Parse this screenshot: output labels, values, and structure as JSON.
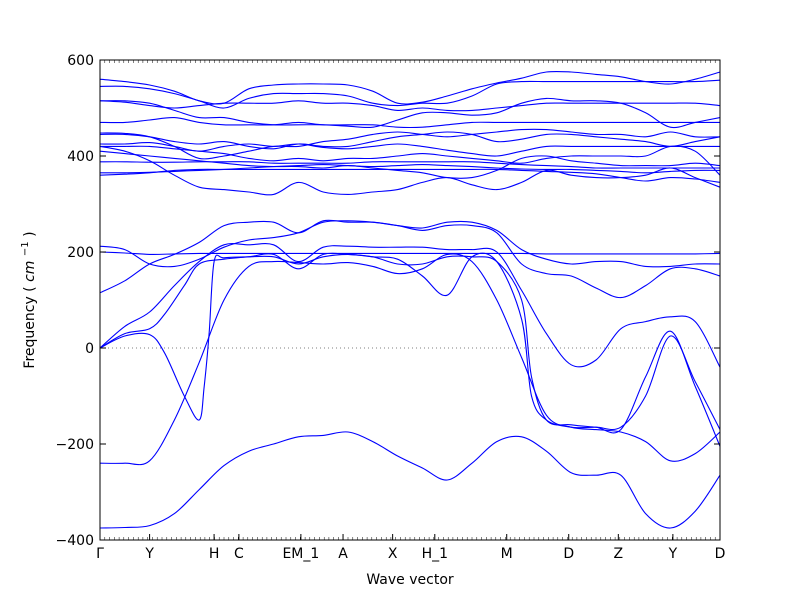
{
  "chart_data": {
    "type": "line",
    "title": "",
    "xlabel": "Wave vector",
    "ylabel": "Frequency",
    "ylabel_unit_parts": [
      "cm",
      "−1"
    ],
    "ylim": [
      -400,
      600
    ],
    "yticks": [
      -400,
      -200,
      0,
      200,
      400,
      600
    ],
    "xlim": [
      0,
      12.5
    ],
    "x_ticks": [
      {
        "label": "Γ",
        "x": 0
      },
      {
        "label": "Y",
        "x": 1
      },
      {
        "label": "H",
        "x": 2.3
      },
      {
        "label": "C",
        "x": 2.8
      },
      {
        "label": "EM_1",
        "x": 4.05
      },
      {
        "label": "A",
        "x": 4.9
      },
      {
        "label": "X",
        "x": 5.9
      },
      {
        "label": "H_1",
        "x": 6.75
      },
      {
        "label": "M",
        "x": 8.2
      },
      {
        "label": "D",
        "x": 9.45
      },
      {
        "label": "Z",
        "x": 10.45
      },
      {
        "label": "Y",
        "x": 11.55
      },
      {
        "label": "D",
        "x": 12.5
      }
    ],
    "zero_line": true,
    "grid": false,
    "line_color": "#0000ff",
    "series": [
      {
        "x": [
          0,
          0.5,
          1,
          1.5,
          2,
          2.5,
          3,
          3.5,
          4,
          4.5,
          5,
          5.5,
          6,
          6.5,
          7,
          7.5,
          8,
          8.5,
          9,
          9.5,
          10,
          10.5,
          11,
          11.5,
          12,
          12.5
        ],
        "values": [
          -375,
          -374,
          -370,
          -345,
          -295,
          -245,
          -215,
          -200,
          -185,
          -182,
          -175,
          -195,
          -225,
          -250,
          -275,
          -240,
          -195,
          -185,
          -215,
          -260,
          -265,
          -265,
          -345,
          -375,
          -340,
          -265
        ]
      },
      {
        "x": [
          0,
          0.5,
          1,
          1.5,
          2,
          2.5,
          3,
          3.5,
          4,
          4.5,
          5,
          5.5,
          6,
          6.5,
          7,
          7.5,
          8,
          8.5,
          9,
          9.5,
          10,
          10.5,
          11,
          11.5,
          12,
          12.5
        ],
        "values": [
          -240,
          -240,
          -235,
          -150,
          -30,
          100,
          170,
          180,
          178,
          175,
          178,
          170,
          155,
          165,
          195,
          180,
          100,
          -20,
          -140,
          -165,
          -170,
          -175,
          -195,
          -235,
          -220,
          -175
        ]
      },
      {
        "x": [
          0,
          0.5,
          1,
          1.3,
          1.7,
          2,
          2.1,
          2.2,
          2.3,
          2.5,
          3,
          3.5,
          4,
          4.5,
          5,
          5.5,
          6,
          6.5,
          7,
          7.5,
          8,
          8.5,
          8.7,
          9,
          9.5,
          10,
          10.5,
          11,
          11.5,
          12,
          12.5
        ],
        "values": [
          0,
          25,
          28,
          -10,
          -100,
          -150,
          -80,
          30,
          180,
          188,
          190,
          190,
          175,
          190,
          195,
          190,
          185,
          150,
          110,
          190,
          180,
          60,
          -100,
          -150,
          -165,
          -165,
          -165,
          -100,
          25,
          -70,
          -170
        ]
      },
      {
        "x": [
          0,
          0.5,
          1,
          1.3,
          1.7,
          2,
          2.5,
          3,
          3.5,
          4,
          4.5,
          5,
          5.5,
          6,
          6.5,
          7,
          7.5,
          8,
          8.5,
          8.7,
          9,
          9.5,
          10,
          10.5,
          11,
          11.5,
          12,
          12.5
        ],
        "values": [
          0,
          30,
          40,
          70,
          130,
          175,
          185,
          190,
          195,
          165,
          195,
          195,
          190,
          175,
          175,
          190,
          190,
          180,
          100,
          -60,
          -150,
          -160,
          -165,
          -170,
          -60,
          35,
          -80,
          -205
        ]
      },
      {
        "x": [
          0,
          0.5,
          1,
          1.5,
          2,
          2.5,
          3,
          3.5,
          4,
          4.5,
          5,
          5.5,
          6,
          6.5,
          7,
          7.5,
          8,
          8.5,
          9,
          9.5,
          10,
          10.5,
          11,
          11.5,
          12,
          12.5
        ],
        "values": [
          0,
          45,
          75,
          130,
          180,
          215,
          215,
          215,
          180,
          210,
          212,
          210,
          210,
          210,
          205,
          205,
          200,
          120,
          30,
          -35,
          -25,
          40,
          55,
          65,
          55,
          -40
        ]
      },
      {
        "x": [
          0,
          0.5,
          1,
          1.5,
          2,
          2.5,
          3,
          3.5,
          4,
          4.5,
          5,
          5.5,
          6,
          6.5,
          7,
          7.5,
          8,
          8.5,
          9,
          9.5,
          10,
          10.5,
          11,
          11.5,
          12,
          12.5
        ],
        "values": [
          115,
          140,
          175,
          195,
          220,
          255,
          262,
          262,
          240,
          265,
          262,
          262,
          255,
          245,
          255,
          255,
          240,
          175,
          155,
          150,
          125,
          105,
          130,
          165,
          165,
          150
        ]
      },
      {
        "x": [
          0,
          0.5,
          1,
          1.5,
          2,
          2.5,
          3,
          3.5,
          4,
          4.5,
          5,
          5.5,
          6,
          6.5,
          7,
          7.5,
          8,
          8.5,
          9,
          9.5,
          10,
          10.5,
          11,
          11.5,
          12,
          12.5
        ],
        "values": [
          212,
          205,
          175,
          170,
          185,
          210,
          225,
          230,
          240,
          262,
          265,
          262,
          255,
          250,
          262,
          262,
          245,
          205,
          185,
          175,
          180,
          180,
          170,
          170,
          175,
          175
        ]
      },
      {
        "x": [
          0,
          0.5,
          1,
          1.5,
          2,
          2.5,
          3,
          3.5,
          4,
          4.5,
          5,
          5.5,
          6,
          6.5,
          7,
          7.5,
          8,
          8.5,
          9,
          9.5,
          10,
          10.5,
          11,
          11.5,
          12,
          12.5
        ],
        "values": [
          200,
          198,
          195,
          196,
          197,
          197,
          197,
          197,
          197,
          197,
          197,
          197,
          197,
          197,
          197,
          197,
          197,
          197,
          196,
          196,
          196,
          196,
          196,
          196,
          196,
          197
        ]
      },
      {
        "x": [
          0,
          0.5,
          1,
          1.5,
          2,
          2.5,
          3,
          3.5,
          4,
          4.5,
          5,
          5.5,
          6,
          6.5,
          7,
          7.5,
          8,
          8.5,
          9,
          9.5,
          10,
          10.5,
          11,
          11.5,
          12,
          12.5
        ],
        "values": [
          360,
          362,
          365,
          370,
          372,
          372,
          372,
          372,
          372,
          372,
          372,
          372,
          372,
          372,
          372,
          372,
          372,
          370,
          368,
          366,
          363,
          355,
          348,
          355,
          352,
          345
        ]
      },
      {
        "x": [
          0,
          0.5,
          1,
          1.5,
          2,
          2.5,
          3,
          3.5,
          4,
          4.5,
          5,
          5.5,
          6,
          6.5,
          7,
          7.5,
          8,
          8.5,
          9,
          9.5,
          10,
          10.5,
          11,
          11.5,
          12,
          12.5
        ],
        "values": [
          365,
          365,
          366,
          368,
          370,
          372,
          375,
          378,
          380,
          382,
          380,
          378,
          380,
          382,
          380,
          378,
          375,
          373,
          372,
          372,
          370,
          368,
          365,
          368,
          370,
          370
        ]
      },
      {
        "x": [
          0,
          0.5,
          1,
          1.5,
          2,
          2.5,
          3,
          3.5,
          4,
          4.5,
          5,
          5.5,
          6,
          6.5,
          7,
          7.5,
          8,
          8.5,
          9,
          9.5,
          10,
          10.5,
          11,
          11.5,
          12,
          12.5
        ],
        "values": [
          420,
          410,
          390,
          360,
          335,
          330,
          325,
          320,
          345,
          325,
          320,
          325,
          330,
          345,
          355,
          340,
          330,
          345,
          370,
          360,
          355,
          355,
          360,
          375,
          355,
          335
        ]
      },
      {
        "x": [
          0,
          0.5,
          1,
          1.5,
          2,
          2.5,
          3,
          3.5,
          4,
          4.5,
          5,
          5.5,
          6,
          6.5,
          7,
          7.5,
          8,
          8.5,
          9,
          9.5,
          10,
          10.5,
          11,
          11.5,
          12,
          12.5
        ],
        "values": [
          388,
          388,
          387,
          387,
          388,
          388,
          388,
          385,
          385,
          385,
          385,
          388,
          388,
          388,
          388,
          388,
          385,
          382,
          380,
          378,
          375,
          375,
          375,
          375,
          375,
          375
        ]
      },
      {
        "x": [
          0,
          0.5,
          1,
          1.5,
          2,
          2.5,
          3,
          3.5,
          4,
          4.5,
          5,
          5.5,
          6,
          6.5,
          7,
          7.5,
          8,
          8.5,
          9,
          9.5,
          10,
          10.5,
          11,
          11.5,
          12,
          12.5
        ],
        "values": [
          410,
          405,
          400,
          395,
          390,
          385,
          380,
          378,
          378,
          375,
          380,
          375,
          370,
          365,
          355,
          355,
          370,
          395,
          400,
          390,
          385,
          380,
          380,
          380,
          385,
          380
        ]
      },
      {
        "x": [
          0,
          0.5,
          1,
          1.5,
          2,
          2.5,
          3,
          3.5,
          4,
          4.5,
          5,
          5.5,
          6,
          6.5,
          7,
          7.5,
          8,
          8.5,
          9,
          9.5,
          10,
          10.5,
          11,
          11.5,
          12,
          12.5
        ],
        "values": [
          420,
          420,
          420,
          415,
          410,
          405,
          395,
          390,
          395,
          390,
          395,
          395,
          400,
          405,
          400,
          395,
          390,
          385,
          395,
          400,
          400,
          400,
          400,
          420,
          410,
          360
        ]
      },
      {
        "x": [
          0,
          0.5,
          1,
          1.5,
          2,
          2.5,
          3,
          3.5,
          4,
          4.5,
          5,
          5.5,
          6,
          6.5,
          7,
          7.5,
          8,
          8.5,
          9,
          9.5,
          10,
          10.5,
          11,
          11.5,
          12,
          12.5
        ],
        "values": [
          425,
          425,
          428,
          420,
          410,
          420,
          425,
          420,
          425,
          418,
          415,
          420,
          425,
          420,
          412,
          405,
          400,
          410,
          420,
          420,
          420,
          420,
          420,
          420,
          420,
          420
        ]
      },
      {
        "x": [
          0,
          0.5,
          1,
          1.5,
          2,
          2.5,
          3,
          3.5,
          4,
          4.5,
          5,
          5.5,
          6,
          6.5,
          7,
          7.5,
          8,
          8.5,
          9,
          9.5,
          10,
          10.5,
          11,
          11.5,
          12,
          12.5
        ],
        "values": [
          445,
          445,
          440,
          430,
          425,
          430,
          420,
          415,
          425,
          420,
          420,
          430,
          440,
          445,
          450,
          445,
          430,
          435,
          445,
          445,
          440,
          435,
          430,
          420,
          430,
          440
        ]
      },
      {
        "x": [
          0,
          0.5,
          1,
          1.5,
          2,
          2.5,
          3,
          3.5,
          4,
          4.5,
          5,
          5.5,
          6,
          6.5,
          7,
          7.5,
          8,
          8.5,
          9,
          9.5,
          10,
          10.5,
          11,
          11.5,
          12,
          12.5
        ],
        "values": [
          448,
          447,
          440,
          420,
          395,
          400,
          410,
          420,
          420,
          430,
          435,
          445,
          450,
          445,
          440,
          445,
          450,
          455,
          455,
          450,
          445,
          445,
          440,
          450,
          440,
          440
        ]
      },
      {
        "x": [
          0,
          0.5,
          1,
          1.5,
          2,
          2.5,
          3,
          3.5,
          4,
          4.5,
          5,
          5.5,
          6,
          6.5,
          7,
          7.5,
          8,
          8.5,
          9,
          9.5,
          10,
          10.5,
          11,
          11.5,
          12,
          12.5
        ],
        "values": [
          470,
          470,
          475,
          480,
          470,
          465,
          465,
          465,
          470,
          465,
          465,
          465,
          460,
          460,
          465,
          470,
          470,
          470,
          470,
          470,
          470,
          470,
          470,
          470,
          470,
          470
        ]
      },
      {
        "x": [
          0,
          0.5,
          1,
          1.5,
          2,
          2.5,
          3,
          3.5,
          4,
          4.5,
          5,
          5.5,
          6,
          6.5,
          7,
          7.5,
          8,
          8.5,
          9,
          9.5,
          10,
          10.5,
          11,
          11.5,
          12,
          12.5
        ],
        "values": [
          515,
          515,
          510,
          495,
          480,
          480,
          470,
          465,
          465,
          465,
          462,
          460,
          475,
          490,
          490,
          485,
          490,
          510,
          520,
          515,
          515,
          510,
          490,
          460,
          470,
          480
        ]
      },
      {
        "x": [
          0,
          0.5,
          1,
          1.5,
          2,
          2.5,
          3,
          3.5,
          4,
          4.5,
          5,
          5.5,
          6,
          6.5,
          7,
          7.5,
          8,
          8.5,
          9,
          9.5,
          10,
          10.5,
          11,
          11.5,
          12,
          12.5
        ],
        "values": [
          515,
          512,
          505,
          500,
          505,
          510,
          510,
          510,
          515,
          510,
          510,
          505,
          495,
          500,
          495,
          495,
          500,
          505,
          510,
          510,
          510,
          510,
          510,
          510,
          510,
          505
        ]
      },
      {
        "x": [
          0,
          0.5,
          1,
          1.5,
          2,
          2.5,
          3,
          3.5,
          4,
          4.5,
          5,
          5.5,
          6,
          6.5,
          7,
          7.5,
          8,
          8.5,
          9,
          9.5,
          10,
          10.5,
          11,
          11.5,
          12,
          12.5
        ],
        "values": [
          545,
          545,
          540,
          530,
          515,
          500,
          520,
          530,
          530,
          530,
          525,
          510,
          505,
          510,
          510,
          525,
          550,
          555,
          555,
          555,
          555,
          555,
          555,
          555,
          555,
          558
        ]
      },
      {
        "x": [
          0,
          0.5,
          1,
          1.5,
          2,
          2.5,
          3,
          3.5,
          4,
          4.5,
          5,
          5.5,
          6,
          6.5,
          7,
          7.5,
          8,
          8.5,
          9,
          9.5,
          10,
          10.5,
          11,
          11.5,
          12,
          12.5
        ],
        "values": [
          560,
          555,
          548,
          535,
          515,
          510,
          540,
          548,
          550,
          550,
          548,
          535,
          510,
          512,
          525,
          540,
          552,
          562,
          575,
          575,
          570,
          565,
          555,
          550,
          560,
          575
        ]
      }
    ]
  }
}
